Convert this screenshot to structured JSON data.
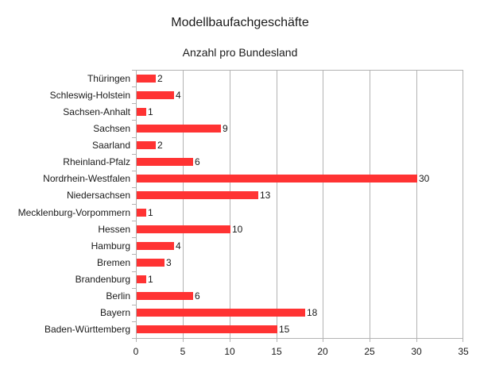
{
  "chart_data": {
    "type": "bar",
    "orientation": "horizontal",
    "title": "Modellbaufachgeschäfte",
    "subtitle": "Anzahl pro Bundesland",
    "xlabel": "",
    "ylabel": "",
    "xlim": [
      0,
      35
    ],
    "x_ticks": [
      0,
      5,
      10,
      15,
      20,
      25,
      30,
      35
    ],
    "grid": true,
    "legend": null,
    "bar_color": "#ff3333",
    "categories": [
      "Thüringen",
      "Schleswig-Holstein",
      "Sachsen-Anhalt",
      "Sachsen",
      "Saarland",
      "Rheinland-Pfalz",
      "Nordrhein-Westfalen",
      "Niedersachsen",
      "Mecklenburg-Vorpommern",
      "Hessen",
      "Hamburg",
      "Bremen",
      "Brandenburg",
      "Berlin",
      "Bayern",
      "Baden-Württemberg"
    ],
    "values": [
      2,
      4,
      1,
      9,
      2,
      6,
      30,
      13,
      1,
      10,
      4,
      3,
      1,
      6,
      18,
      15
    ]
  }
}
